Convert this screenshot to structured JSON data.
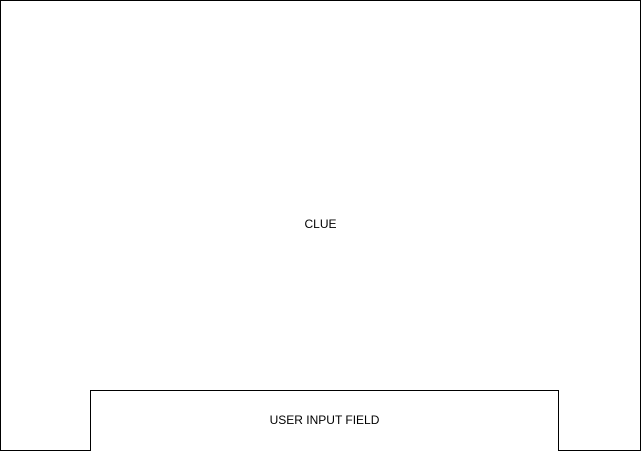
{
  "clue": {
    "label": "CLUE"
  },
  "input_field": {
    "label": "USER INPUT FIELD"
  }
}
